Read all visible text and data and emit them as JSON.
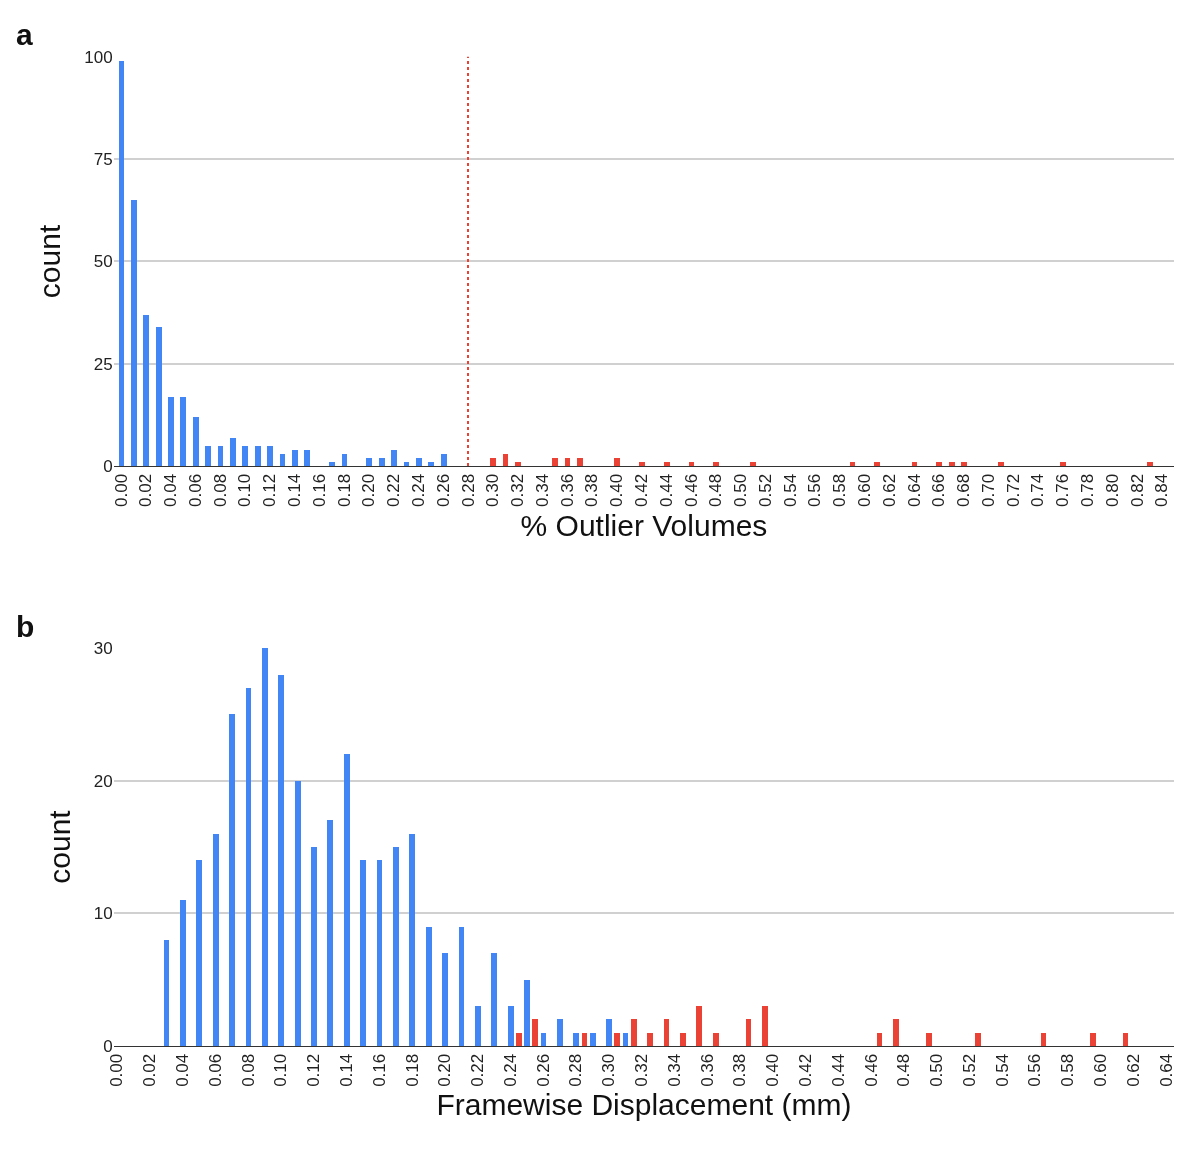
{
  "chart_data": [
    {
      "type": "bar",
      "title": "a",
      "xlabel": "% Outlier Volumes",
      "ylabel": "count",
      "series": [
        {
          "color": "#4285f4",
          "x": [
            0.0,
            0.01,
            0.02,
            0.03,
            0.04,
            0.05,
            0.06,
            0.07,
            0.08,
            0.09,
            0.1,
            0.11,
            0.12,
            0.13,
            0.14,
            0.15,
            0.17,
            0.18,
            0.2,
            0.21,
            0.22,
            0.23,
            0.24,
            0.25,
            0.26
          ],
          "values": [
            99,
            65,
            37,
            34,
            17,
            17,
            12,
            5,
            5,
            7,
            5,
            5,
            5,
            3,
            4,
            4,
            1,
            3,
            2,
            2,
            4,
            1,
            2,
            1,
            3
          ]
        },
        {
          "color": "#ea4335",
          "x": [
            0.3,
            0.31,
            0.32,
            0.35,
            0.36,
            0.37,
            0.4,
            0.42,
            0.44,
            0.46,
            0.48,
            0.51,
            0.59,
            0.61,
            0.64,
            0.66,
            0.67,
            0.68,
            0.71,
            0.76,
            0.83
          ],
          "values": [
            2,
            3,
            1,
            2,
            2,
            2,
            2,
            1,
            1,
            1,
            1,
            1,
            1,
            1,
            1,
            1,
            1,
            1,
            1,
            1,
            1
          ]
        }
      ],
      "ref_lines": [
        {
          "axis": "x",
          "value": 0.28,
          "color": "#ea4335",
          "line_style": "dotted"
        }
      ],
      "xlim": [
        -0.006,
        0.85
      ],
      "ylim": [
        0,
        100
      ],
      "yticks": [
        0,
        25,
        50,
        75,
        100
      ],
      "xticks": [
        {
          "value": 0,
          "label": "0.00"
        },
        {
          "value": 0.02,
          "label": "0.02"
        },
        {
          "value": 0.04,
          "label": "0.04"
        },
        {
          "value": 0.06,
          "label": "0.06"
        },
        {
          "value": 0.08,
          "label": "0.08"
        },
        {
          "value": 0.1,
          "label": "0.10"
        },
        {
          "value": 0.12,
          "label": "0.12"
        },
        {
          "value": 0.14,
          "label": "0.14"
        },
        {
          "value": 0.16,
          "label": "0.16"
        },
        {
          "value": 0.18,
          "label": "0.18"
        },
        {
          "value": 0.2,
          "label": "0.20"
        },
        {
          "value": 0.22,
          "label": "0.22"
        },
        {
          "value": 0.24,
          "label": "0.24"
        },
        {
          "value": 0.26,
          "label": "0.26"
        },
        {
          "value": 0.28,
          "label": "0.28"
        },
        {
          "value": 0.3,
          "label": "0.30"
        },
        {
          "value": 0.32,
          "label": "0.32"
        },
        {
          "value": 0.34,
          "label": "0.34"
        },
        {
          "value": 0.36,
          "label": "0.36"
        },
        {
          "value": 0.38,
          "label": "0.38"
        },
        {
          "value": 0.4,
          "label": "0.40"
        },
        {
          "value": 0.42,
          "label": "0.42"
        },
        {
          "value": 0.44,
          "label": "0.44"
        },
        {
          "value": 0.46,
          "label": "0.46"
        },
        {
          "value": 0.48,
          "label": "0.48"
        },
        {
          "value": 0.5,
          "label": "0.50"
        },
        {
          "value": 0.52,
          "label": "0.52"
        },
        {
          "value": 0.54,
          "label": "0.54"
        },
        {
          "value": 0.56,
          "label": "0.56"
        },
        {
          "value": 0.58,
          "label": "0.58"
        },
        {
          "value": 0.6,
          "label": "0.60"
        },
        {
          "value": 0.62,
          "label": "0.62"
        },
        {
          "value": 0.64,
          "label": "0.64"
        },
        {
          "value": 0.66,
          "label": "0.66"
        },
        {
          "value": 0.68,
          "label": "0.68"
        },
        {
          "value": 0.7,
          "label": "0.70"
        },
        {
          "value": 0.72,
          "label": "0.72"
        },
        {
          "value": 0.74,
          "label": "0.74"
        },
        {
          "value": 0.76,
          "label": "0.76"
        },
        {
          "value": 0.78,
          "label": "0.78"
        },
        {
          "value": 0.8,
          "label": "0.80"
        },
        {
          "value": 0.82,
          "label": "0.82"
        },
        {
          "value": 0.84,
          "label": "0.84"
        }
      ],
      "grid": "y"
    },
    {
      "type": "bar",
      "title": "b",
      "xlabel": "Framewise Displacement (mm)",
      "ylabel": "count",
      "series": [
        {
          "color": "#4285f4",
          "x": [
            0.03,
            0.04,
            0.05,
            0.06,
            0.07,
            0.08,
            0.09,
            0.1,
            0.11,
            0.12,
            0.13,
            0.14,
            0.15,
            0.16,
            0.17,
            0.18,
            0.19,
            0.2,
            0.21,
            0.22,
            0.23,
            0.24,
            0.25,
            0.26,
            0.27,
            0.28,
            0.29,
            0.3,
            0.31
          ],
          "values": [
            8,
            11,
            14,
            16,
            25,
            27,
            30,
            28,
            20,
            15,
            17,
            22,
            14,
            14,
            15,
            16,
            9,
            7,
            9,
            3,
            7,
            3,
            5,
            1,
            2,
            1,
            1,
            2,
            1
          ]
        },
        {
          "color": "#ea4335",
          "x": [
            0.245,
            0.255,
            0.285,
            0.305,
            0.315,
            0.325,
            0.335,
            0.345,
            0.355,
            0.365,
            0.385,
            0.395,
            0.465,
            0.475,
            0.495,
            0.525,
            0.565,
            0.595,
            0.615
          ],
          "values": [
            1,
            2,
            1,
            1,
            2,
            1,
            2,
            1,
            3,
            1,
            2,
            3,
            1,
            2,
            1,
            1,
            1,
            1,
            1
          ]
        }
      ],
      "xlim": [
        -0.002,
        0.645
      ],
      "ylim": [
        0,
        30
      ],
      "yticks": [
        0,
        10,
        20,
        30
      ],
      "xticks": [
        {
          "value": 0,
          "label": "0.00"
        },
        {
          "value": 0.02,
          "label": "0.02"
        },
        {
          "value": 0.04,
          "label": "0.04"
        },
        {
          "value": 0.06,
          "label": "0.06"
        },
        {
          "value": 0.08,
          "label": "0.08"
        },
        {
          "value": 0.1,
          "label": "0.10"
        },
        {
          "value": 0.12,
          "label": "0.12"
        },
        {
          "value": 0.14,
          "label": "0.14"
        },
        {
          "value": 0.16,
          "label": "0.16"
        },
        {
          "value": 0.18,
          "label": "0.18"
        },
        {
          "value": 0.2,
          "label": "0.20"
        },
        {
          "value": 0.22,
          "label": "0.22"
        },
        {
          "value": 0.24,
          "label": "0.24"
        },
        {
          "value": 0.26,
          "label": "0.26"
        },
        {
          "value": 0.28,
          "label": "0.28"
        },
        {
          "value": 0.3,
          "label": "0.30"
        },
        {
          "value": 0.32,
          "label": "0.32"
        },
        {
          "value": 0.34,
          "label": "0.34"
        },
        {
          "value": 0.36,
          "label": "0.36"
        },
        {
          "value": 0.38,
          "label": "0.38"
        },
        {
          "value": 0.4,
          "label": "0.40"
        },
        {
          "value": 0.42,
          "label": "0.42"
        },
        {
          "value": 0.44,
          "label": "0.44"
        },
        {
          "value": 0.46,
          "label": "0.46"
        },
        {
          "value": 0.48,
          "label": "0.48"
        },
        {
          "value": 0.5,
          "label": "0.50"
        },
        {
          "value": 0.52,
          "label": "0.52"
        },
        {
          "value": 0.54,
          "label": "0.54"
        },
        {
          "value": 0.56,
          "label": "0.56"
        },
        {
          "value": 0.58,
          "label": "0.58"
        },
        {
          "value": 0.6,
          "label": "0.60"
        },
        {
          "value": 0.62,
          "label": "0.62"
        },
        {
          "value": 0.64,
          "label": "0.64"
        }
      ],
      "grid": "y"
    }
  ]
}
